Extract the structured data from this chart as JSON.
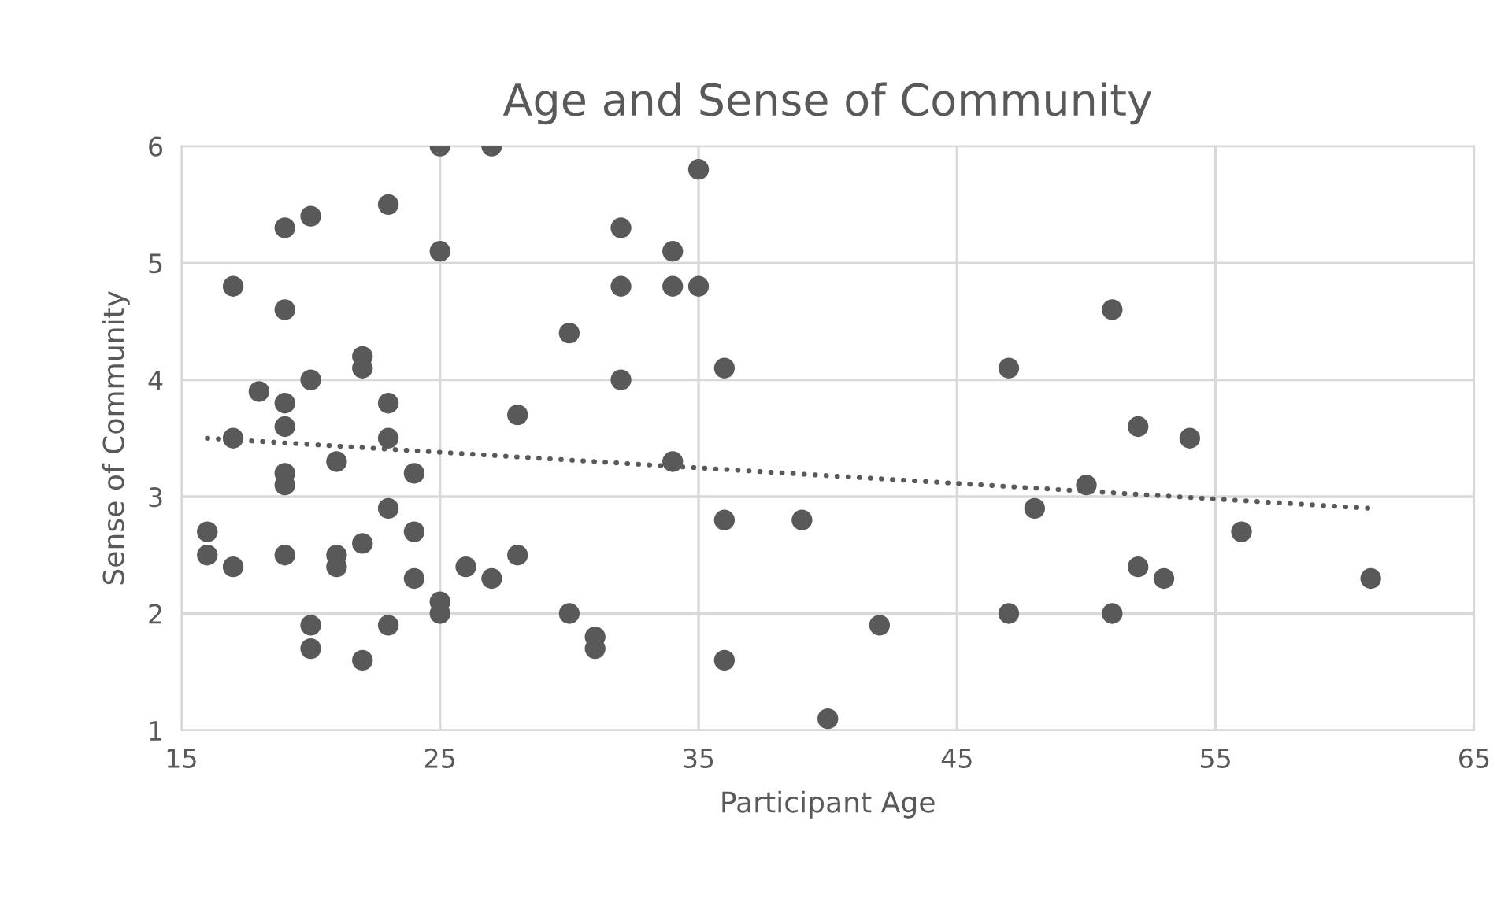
{
  "chart_data": {
    "type": "scatter",
    "title": "Age and Sense of Community",
    "xlabel": "Participant Age",
    "ylabel": "Sense of Community",
    "xlim": [
      15,
      65
    ],
    "xticks": [
      15,
      25,
      35,
      45,
      55,
      65
    ],
    "ylim": [
      1,
      6
    ],
    "yticks": [
      1,
      2,
      3,
      4,
      5,
      6
    ],
    "grid": true,
    "marker": "circle",
    "series": [
      {
        "color": "#595959",
        "x": [
          16,
          16,
          17,
          17,
          17,
          18,
          19,
          19,
          19,
          19,
          19,
          19,
          19,
          20,
          20,
          20,
          20,
          21,
          21,
          21,
          22,
          22,
          22,
          22,
          23,
          23,
          23,
          23,
          23,
          24,
          24,
          24,
          25,
          25,
          25,
          25,
          26,
          27,
          27,
          28,
          28,
          30,
          30,
          31,
          31,
          32,
          32,
          32,
          34,
          34,
          34,
          35,
          35,
          36,
          36,
          36,
          39,
          40,
          42,
          47,
          47,
          48,
          50,
          51,
          51,
          52,
          52,
          53,
          54,
          56,
          61
        ],
        "values": [
          2.7,
          2.5,
          4.8,
          3.5,
          2.4,
          3.9,
          5.3,
          4.6,
          3.8,
          3.6,
          3.2,
          3.1,
          2.5,
          5.4,
          4.0,
          1.9,
          1.7,
          3.3,
          2.5,
          2.4,
          4.2,
          4.1,
          2.6,
          1.6,
          5.5,
          3.8,
          3.5,
          2.9,
          1.9,
          3.2,
          2.7,
          2.3,
          6.0,
          5.1,
          2.1,
          2.0,
          2.4,
          6.0,
          2.3,
          3.7,
          2.5,
          4.4,
          2.0,
          1.8,
          1.7,
          5.3,
          4.8,
          4.0,
          5.1,
          4.8,
          3.3,
          5.8,
          4.8,
          4.1,
          2.8,
          1.6,
          2.8,
          1.1,
          1.9,
          4.1,
          2.0,
          2.9,
          3.1,
          4.6,
          2.0,
          3.6,
          2.4,
          2.3,
          3.5,
          2.7,
          2.3
        ]
      },
      {
        "type": "line",
        "color": "#595959",
        "line_style": "dotted",
        "marker": "none",
        "x": [
          16,
          61
        ],
        "values": [
          3.5,
          2.9
        ]
      }
    ]
  }
}
